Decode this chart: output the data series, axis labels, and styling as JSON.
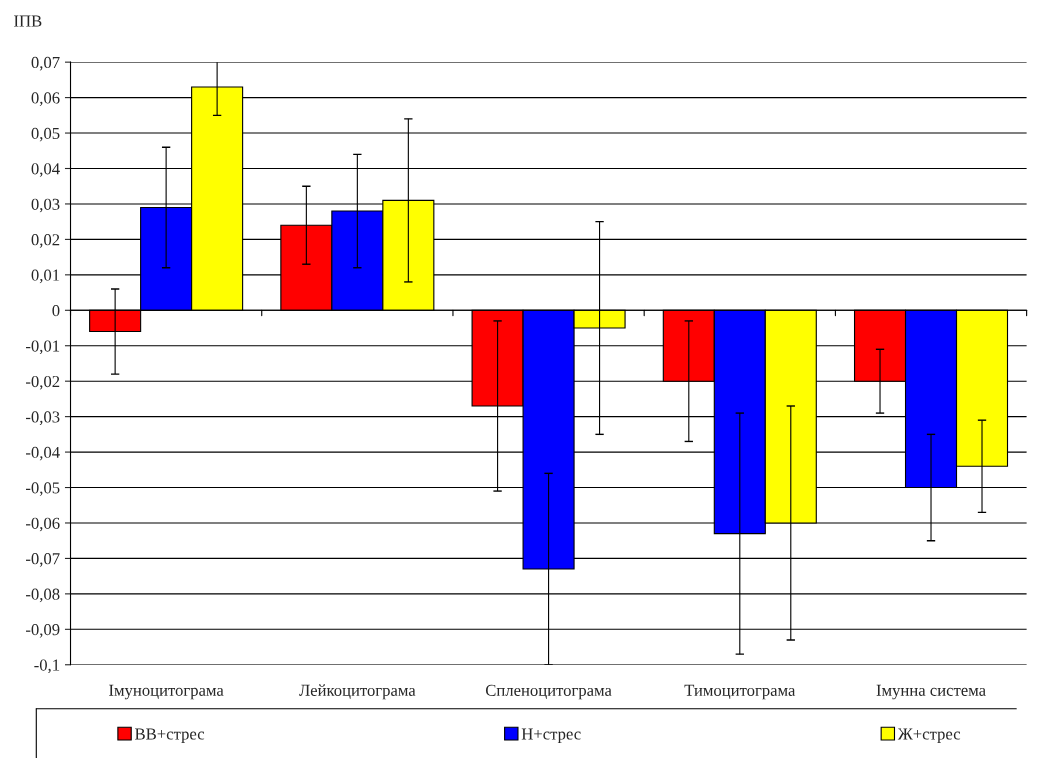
{
  "chart_data": {
    "type": "bar",
    "ylabel": "ІПВ",
    "categories": [
      "Імуноцитограма",
      "Лейкоцитограма",
      "Спленоцитограма",
      "Тимоцитограма",
      "Імунна система"
    ],
    "series": [
      {
        "name": "ВВ+стрес",
        "color": "#ff0000",
        "values": [
          -0.006,
          0.024,
          -0.027,
          -0.02,
          -0.02
        ],
        "errors": [
          0.012,
          0.011,
          0.024,
          0.017,
          0.009
        ]
      },
      {
        "name": "Н+стрес",
        "color": "#0000ff",
        "values": [
          0.029,
          0.028,
          -0.073,
          -0.063,
          -0.05
        ],
        "errors": [
          0.017,
          0.016,
          0.027,
          0.034,
          0.015
        ]
      },
      {
        "name": "Ж+стрес",
        "color": "#ffff00",
        "values": [
          0.063,
          0.031,
          -0.005,
          -0.06,
          -0.044
        ],
        "errors": [
          0.008,
          0.023,
          0.03,
          0.033,
          0.013
        ]
      }
    ],
    "ylim": [
      -0.1,
      0.07
    ],
    "yticks": [
      {
        "value": 0.07,
        "label": "0,07"
      },
      {
        "value": 0.06,
        "label": "0,06"
      },
      {
        "value": 0.05,
        "label": "0,05"
      },
      {
        "value": 0.04,
        "label": "0,04"
      },
      {
        "value": 0.03,
        "label": "0,03"
      },
      {
        "value": 0.02,
        "label": "0,02"
      },
      {
        "value": 0.01,
        "label": "0,01"
      },
      0,
      {
        "value": -0.01,
        "label": "-0,01"
      },
      {
        "value": -0.02,
        "label": "-0,02"
      },
      {
        "value": -0.03,
        "label": "-0,03"
      },
      {
        "value": -0.04,
        "label": "-0,04"
      },
      {
        "value": -0.05,
        "label": "-0,05"
      },
      {
        "value": -0.06,
        "label": "-0,06"
      },
      {
        "value": -0.07,
        "label": "-0,07"
      },
      {
        "value": -0.08,
        "label": "-0,08"
      },
      {
        "value": -0.09,
        "label": "-0,09"
      },
      {
        "value": -0.1,
        "label": "-0,1"
      }
    ],
    "grid": "y",
    "legend": "bottom"
  }
}
